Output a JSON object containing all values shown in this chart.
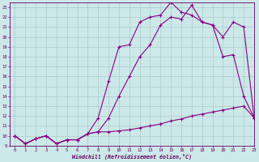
{
  "line1_x": [
    0,
    1,
    2,
    3,
    4,
    5,
    6,
    7,
    8,
    9,
    10,
    11,
    12,
    13,
    14,
    15,
    16,
    17,
    18,
    19,
    20,
    21,
    22,
    23
  ],
  "line1_y": [
    10.0,
    9.2,
    9.7,
    10.0,
    9.2,
    9.6,
    9.6,
    10.2,
    10.4,
    10.4,
    10.5,
    10.6,
    10.8,
    11.0,
    11.2,
    11.5,
    11.7,
    12.0,
    12.2,
    12.4,
    12.6,
    12.8,
    13.0,
    11.8
  ],
  "line2_x": [
    0,
    1,
    2,
    3,
    4,
    5,
    6,
    7,
    8,
    9,
    10,
    11,
    12,
    13,
    14,
    15,
    16,
    17,
    18,
    19,
    20,
    21,
    22,
    23
  ],
  "line2_y": [
    10.0,
    9.2,
    9.7,
    10.0,
    9.2,
    9.6,
    9.6,
    10.2,
    11.8,
    15.5,
    19.0,
    19.2,
    21.5,
    22.0,
    22.2,
    23.5,
    22.5,
    22.2,
    21.5,
    21.2,
    18.0,
    18.2,
    14.0,
    11.8
  ],
  "line3_x": [
    0,
    1,
    2,
    3,
    4,
    5,
    6,
    7,
    8,
    9,
    10,
    11,
    12,
    13,
    14,
    15,
    16,
    17,
    18,
    19,
    20,
    21,
    22,
    23
  ],
  "line3_y": [
    10.0,
    9.2,
    9.7,
    10.0,
    9.2,
    9.6,
    9.6,
    10.2,
    10.4,
    11.8,
    14.0,
    16.0,
    18.0,
    19.2,
    21.2,
    22.0,
    21.8,
    23.2,
    21.5,
    21.2,
    20.0,
    21.5,
    21.0,
    11.8
  ],
  "xlim": [
    -0.5,
    23
  ],
  "ylim": [
    9,
    23.5
  ],
  "xticks": [
    0,
    1,
    2,
    3,
    4,
    5,
    6,
    7,
    8,
    9,
    10,
    11,
    12,
    13,
    14,
    15,
    16,
    17,
    18,
    19,
    20,
    21,
    22,
    23
  ],
  "yticks": [
    9,
    10,
    11,
    12,
    13,
    14,
    15,
    16,
    17,
    18,
    19,
    20,
    21,
    22,
    23
  ],
  "xlabel": "Windchill (Refroidissement éolien,°C)",
  "bg_color": "#cce8e8",
  "line_color": "#880088",
  "grid_color": "#aacccc",
  "axis_color": "#660066",
  "marker": "+"
}
